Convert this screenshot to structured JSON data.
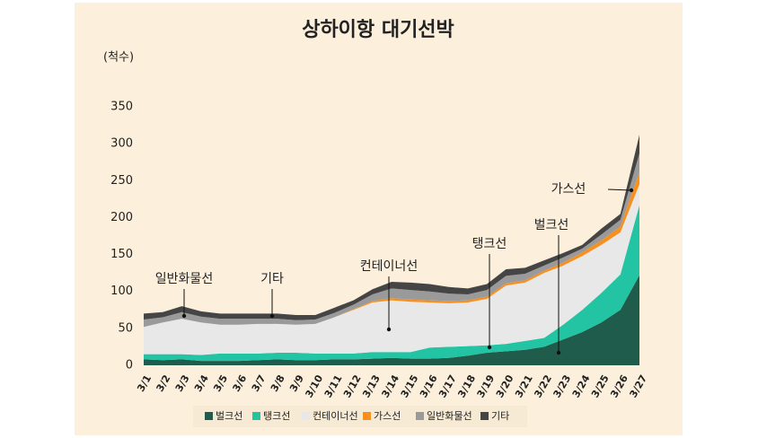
{
  "chart_data": {
    "type": "stacked_area",
    "title": "상하이항 대기선박",
    "y_axis_label": "(척수)",
    "categories": [
      "3/1",
      "3/2",
      "3/3",
      "3/4",
      "3/5",
      "3/6",
      "3/7",
      "3/8",
      "3/9",
      "3/10",
      "3/11",
      "3/12",
      "3/13",
      "3/14",
      "3/15",
      "3/16",
      "3/17",
      "3/18",
      "3/19",
      "3/20",
      "3/21",
      "3/22",
      "3/23",
      "3/24",
      "3/25",
      "3/26",
      "3/27"
    ],
    "series": [
      {
        "name": "벌크선",
        "color": "#1f5c4b",
        "values": [
          8,
          7,
          8,
          6,
          6,
          6,
          7,
          8,
          7,
          7,
          8,
          8,
          9,
          10,
          9,
          9,
          10,
          13,
          17,
          19,
          21,
          25,
          35,
          45,
          58,
          75,
          122
        ]
      },
      {
        "name": "탱크선",
        "color": "#22c4a3",
        "values": [
          7,
          8,
          7,
          8,
          10,
          10,
          9,
          9,
          10,
          9,
          8,
          8,
          9,
          8,
          9,
          15,
          15,
          13,
          10,
          10,
          12,
          12,
          20,
          30,
          40,
          48,
          95
        ]
      },
      {
        "name": "컨테이너선",
        "color": "#e8e8e8",
        "values": [
          37,
          43,
          48,
          44,
          39,
          39,
          40,
          39,
          38,
          40,
          49,
          59,
          67,
          70,
          68,
          61,
          59,
          59,
          63,
          79,
          79,
          88,
          80,
          73,
          65,
          57,
          28
        ]
      },
      {
        "name": "가스선",
        "color": "#f7901e",
        "values": [
          0,
          0,
          0,
          0,
          0,
          0,
          0,
          0,
          0,
          0,
          0,
          1,
          2,
          3,
          3,
          3,
          3,
          3,
          3,
          3,
          3,
          3,
          4,
          5,
          6,
          8,
          17
        ]
      },
      {
        "name": "일반화물선",
        "color": "#9a9a9a",
        "values": [
          10,
          7,
          9,
          8,
          8,
          8,
          7,
          7,
          6,
          6,
          6,
          6,
          9,
          13,
          13,
          12,
          10,
          8,
          9,
          10,
          9,
          7,
          7,
          5,
          8,
          9,
          25
        ]
      },
      {
        "name": "기타",
        "color": "#454545",
        "values": [
          8,
          7,
          8,
          7,
          7,
          7,
          7,
          7,
          7,
          6,
          7,
          6,
          7,
          9,
          10,
          10,
          9,
          8,
          8,
          9,
          8,
          7,
          6,
          5,
          8,
          8,
          25
        ]
      }
    ],
    "annotations": [
      {
        "text": "일반화물선"
      },
      {
        "text": "기타"
      },
      {
        "text": "컨테이너선"
      },
      {
        "text": "탱크선"
      },
      {
        "text": "벌크선"
      },
      {
        "text": "가스선"
      }
    ],
    "ylim": [
      0,
      350
    ],
    "yticks": [
      0,
      50,
      100,
      150,
      200,
      250,
      300,
      350
    ],
    "grid": false
  }
}
